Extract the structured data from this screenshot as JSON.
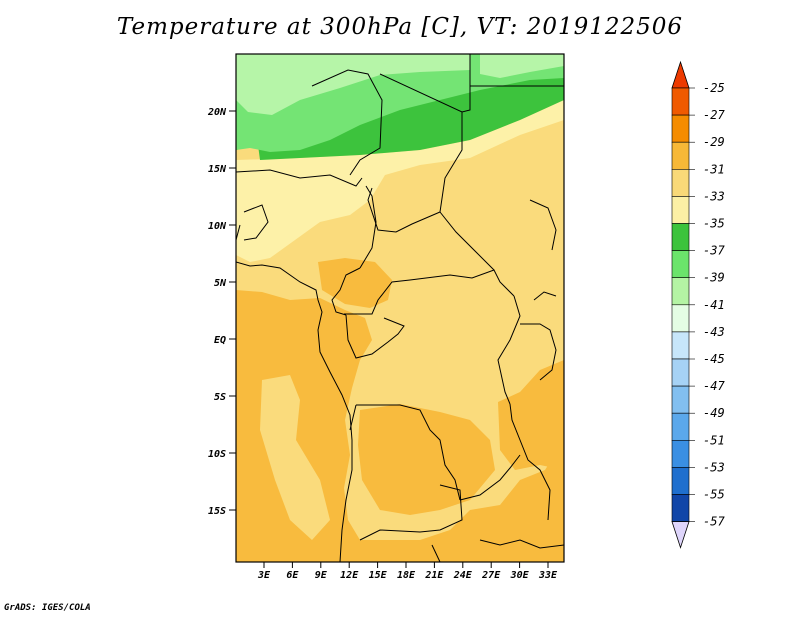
{
  "title": "Temperature at 300hPa [C], VT: 2019122506",
  "credit": "GrADS: IGES/COLA",
  "map": {
    "lat_ticks": [
      "20N",
      "15N",
      "10N",
      "5N",
      "EQ",
      "5S",
      "10S",
      "15S"
    ],
    "lon_ticks": [
      "3E",
      "6E",
      "9E",
      "12E",
      "15E",
      "18E",
      "21E",
      "24E",
      "27E",
      "30E",
      "33E"
    ]
  },
  "colorbar": {
    "labels": [
      "-25",
      "-27",
      "-29",
      "-31",
      "-33",
      "-35",
      "-37",
      "-39",
      "-41",
      "-43",
      "-45",
      "-47",
      "-49",
      "-51",
      "-53",
      "-55",
      "-57"
    ],
    "colors": [
      "#f05a00",
      "#f58c00",
      "#f7b837",
      "#f9d978",
      "#fcf0a5",
      "#3cc33c",
      "#6be46b",
      "#b4f4a4",
      "#e4fde4",
      "#c7e6fa",
      "#a6d2f5",
      "#82bff0",
      "#5ba8eb",
      "#3a8fe3",
      "#1f6fce",
      "#1146a8"
    ],
    "top_arrow_color": "#ed3a00",
    "bottom_arrow_color": "#ded5fb"
  }
}
